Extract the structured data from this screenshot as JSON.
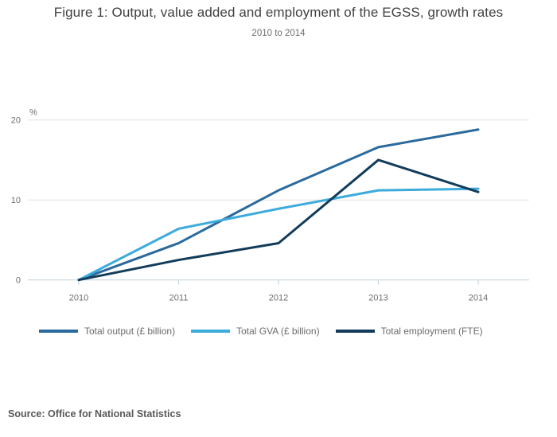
{
  "title": "Figure 1: Output, value added and employment of the EGSS, growth rates",
  "subtitle": "2010 to 2014",
  "source": "Source: Office for National Statistics",
  "colors": {
    "total_output": "#2b6a9d",
    "total_gva": "#3dabdb",
    "total_employment": "#123c5a",
    "gridline": "#e4e4e4",
    "axis": "#c9d7e0",
    "axis_text": "#6d6e71"
  },
  "chart_data": {
    "type": "line",
    "title": "Figure 1: Output, value added and employment of the EGSS, growth rates",
    "subtitle": "2010 to 2014",
    "x": [
      2010,
      2011,
      2012,
      2013,
      2014
    ],
    "xticklabels": [
      "2010",
      "2011",
      "2012",
      "2013",
      "2014"
    ],
    "series": [
      {
        "name": "Total output (£ billion)",
        "color": "#2b6a9d",
        "values": [
          0,
          4.6,
          11.2,
          16.6,
          18.8
        ]
      },
      {
        "name": "Total GVA (£ billion)",
        "color": "#3dabdb",
        "values": [
          0,
          6.4,
          8.9,
          11.2,
          11.4
        ]
      },
      {
        "name": "Total employment (FTE)",
        "color": "#123c5a",
        "values": [
          0,
          2.5,
          4.6,
          15.0,
          11.0
        ]
      }
    ],
    "ylabel": "%",
    "yticks": [
      0,
      10,
      20
    ],
    "ylim": [
      0,
      20
    ],
    "xlim": [
      2009.5,
      2014.5
    ],
    "grid": true,
    "legend_position": "bottom"
  }
}
